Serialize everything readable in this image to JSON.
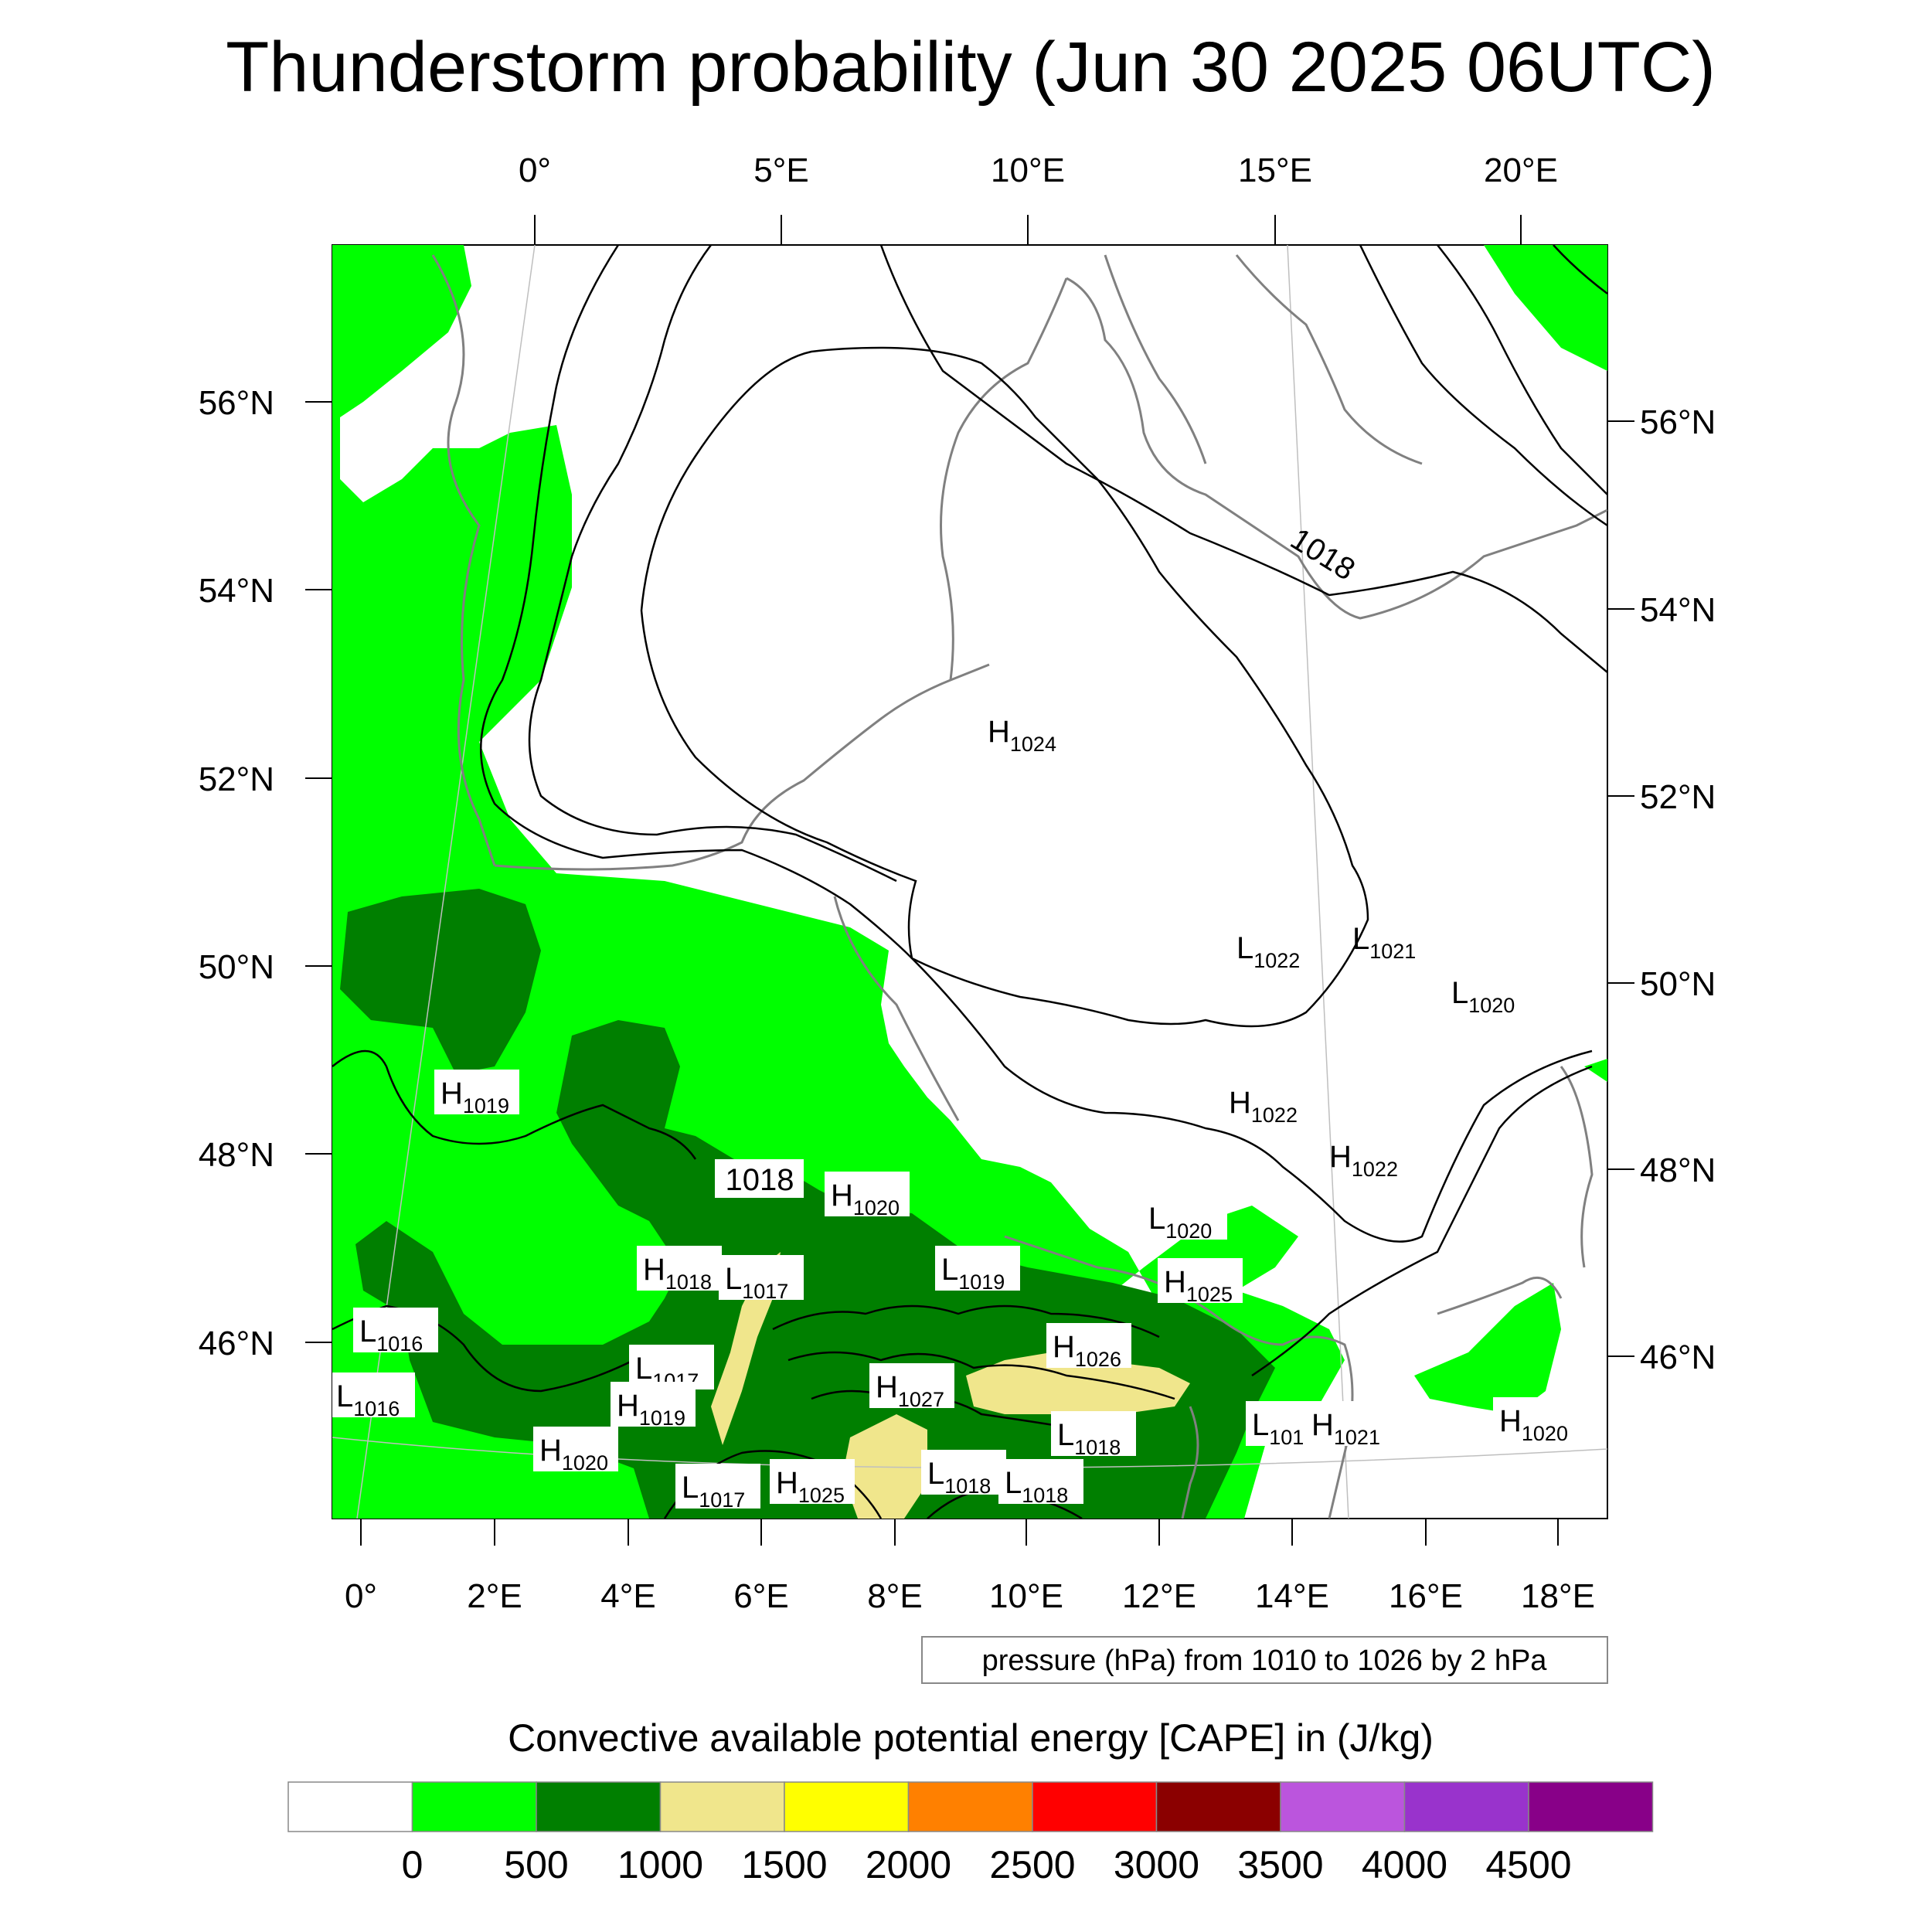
{
  "title": "Thunderstorm probability (Jun 30 2025 06UTC)",
  "axes": {
    "top_lon_labels": [
      "0°",
      "5°E",
      "10°E",
      "15°E",
      "20°E"
    ],
    "bottom_lon_labels": [
      "0°",
      "2°E",
      "4°E",
      "6°E",
      "8°E",
      "10°E",
      "12°E",
      "14°E",
      "16°E",
      "18°E"
    ],
    "left_lat_labels": [
      "56°N",
      "54°N",
      "52°N",
      "50°N",
      "48°N",
      "46°N"
    ],
    "right_lat_labels": [
      "56°N",
      "54°N",
      "52°N",
      "50°N",
      "48°N",
      "46°N"
    ]
  },
  "contour_note": "pressure (hPa) from 1010 to 1026 by 2 hPa",
  "contour_labels": [
    "1018",
    "1018"
  ],
  "pressure_centers": [
    {
      "type": "H",
      "value": "1024"
    },
    {
      "type": "L",
      "value": "1022"
    },
    {
      "type": "L",
      "value": "1021"
    },
    {
      "type": "L",
      "value": "1020"
    },
    {
      "type": "H",
      "value": "1022"
    },
    {
      "type": "H",
      "value": "1022"
    },
    {
      "type": "H",
      "value": "1019"
    },
    {
      "type": "H",
      "value": "1020"
    },
    {
      "type": "L",
      "value": "1020"
    },
    {
      "type": "H",
      "value": "1018"
    },
    {
      "type": "L",
      "value": "1017"
    },
    {
      "type": "L",
      "value": "1019"
    },
    {
      "type": "H",
      "value": "1025"
    },
    {
      "type": "L",
      "value": "1016"
    },
    {
      "type": "H",
      "value": "1026"
    },
    {
      "type": "L",
      "value": "1017"
    },
    {
      "type": "H",
      "value": "1027"
    },
    {
      "type": "L",
      "value": "1016"
    },
    {
      "type": "H",
      "value": "1019"
    },
    {
      "type": "L",
      "value": "1018"
    },
    {
      "type": "L",
      "value": "101"
    },
    {
      "type": "H",
      "value": "1021"
    },
    {
      "type": "H",
      "value": "1020"
    },
    {
      "type": "H",
      "value": "1020"
    },
    {
      "type": "L",
      "value": "1017"
    },
    {
      "type": "H",
      "value": "1025"
    },
    {
      "type": "L",
      "value": "1018"
    },
    {
      "type": "L",
      "value": "1018"
    }
  ],
  "colorbar": {
    "title": "Convective available potential energy [CAPE] in (J/kg)",
    "colors": [
      "#ffffff",
      "#00ff00",
      "#007f00",
      "#f0e68c",
      "#ffff00",
      "#ff8000",
      "#ff0000",
      "#8b0000",
      "#bb55dd",
      "#9933cc",
      "#880088"
    ],
    "tick_labels": [
      "0",
      "500",
      "1000",
      "1500",
      "2000",
      "2500",
      "3000",
      "3500",
      "4000",
      "4500"
    ]
  },
  "legend_colors": {
    "light_green": "#00ff00",
    "dark_green": "#007f00",
    "khaki": "#f0e68c",
    "coast": "#808080",
    "isobar": "#000000"
  }
}
